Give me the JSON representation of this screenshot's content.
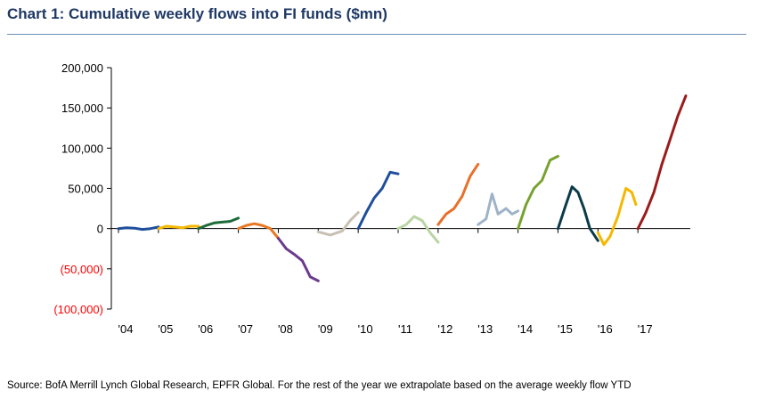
{
  "title": "Chart 1: Cumulative weekly flows into FI funds ($mn)",
  "source": "Source: BofA Merrill Lynch Global Research, EPFR Global. For the rest of the year we extrapolate based on the average weekly flow YTD",
  "chart_data": {
    "type": "line",
    "title": "Cumulative weekly flows into FI funds ($mn)",
    "xlabel": "",
    "ylabel": "",
    "ylim": [
      -100000,
      200000
    ],
    "xlim": [
      2004,
      2018.2
    ],
    "yticks": [
      {
        "value": 200000,
        "label": "200,000",
        "negative": false
      },
      {
        "value": 150000,
        "label": "150,000",
        "negative": false
      },
      {
        "value": 100000,
        "label": "100,000",
        "negative": false
      },
      {
        "value": 50000,
        "label": "50,000",
        "negative": false
      },
      {
        "value": 0,
        "label": "0",
        "negative": false
      },
      {
        "value": -50000,
        "label": "(50,000)",
        "negative": true
      },
      {
        "value": -100000,
        "label": "(100,000)",
        "negative": true
      }
    ],
    "xticks": [
      {
        "value": 2004,
        "label": "'04"
      },
      {
        "value": 2005,
        "label": "'05"
      },
      {
        "value": 2006,
        "label": "'06"
      },
      {
        "value": 2007,
        "label": "'07"
      },
      {
        "value": 2008,
        "label": "'08"
      },
      {
        "value": 2009,
        "label": "'09"
      },
      {
        "value": 2010,
        "label": "'10"
      },
      {
        "value": 2011,
        "label": "'11"
      },
      {
        "value": 2012,
        "label": "'12"
      },
      {
        "value": 2013,
        "label": "'13"
      },
      {
        "value": 2014,
        "label": "'14"
      },
      {
        "value": 2015,
        "label": "'15"
      },
      {
        "value": 2016,
        "label": "'16"
      },
      {
        "value": 2017,
        "label": "'17"
      }
    ],
    "series": [
      {
        "name": "2004",
        "color": "#1f4e9c",
        "points": [
          [
            2004.0,
            0
          ],
          [
            2004.2,
            1000
          ],
          [
            2004.4,
            500
          ],
          [
            2004.6,
            -1000
          ],
          [
            2004.8,
            0
          ],
          [
            2005.0,
            2000
          ]
        ]
      },
      {
        "name": "2005",
        "color": "#f5b700",
        "points": [
          [
            2005.0,
            0
          ],
          [
            2005.2,
            3000
          ],
          [
            2005.4,
            2000
          ],
          [
            2005.6,
            1000
          ],
          [
            2005.8,
            3000
          ],
          [
            2006.0,
            3000
          ]
        ]
      },
      {
        "name": "2006",
        "color": "#1e6b3a",
        "points": [
          [
            2006.0,
            0
          ],
          [
            2006.2,
            4000
          ],
          [
            2006.4,
            7000
          ],
          [
            2006.6,
            8000
          ],
          [
            2006.8,
            9000
          ],
          [
            2007.0,
            13000
          ]
        ]
      },
      {
        "name": "2007",
        "color": "#e87722",
        "points": [
          [
            2007.0,
            0
          ],
          [
            2007.2,
            4000
          ],
          [
            2007.4,
            6000
          ],
          [
            2007.6,
            4000
          ],
          [
            2007.8,
            0
          ],
          [
            2008.0,
            -12000
          ]
        ]
      },
      {
        "name": "2008",
        "color": "#6b3a8c",
        "points": [
          [
            2008.0,
            -12000
          ],
          [
            2008.2,
            -25000
          ],
          [
            2008.4,
            -32000
          ],
          [
            2008.6,
            -40000
          ],
          [
            2008.8,
            -60000
          ],
          [
            2009.0,
            -65000
          ]
        ]
      },
      {
        "name": "2009",
        "color": "#c9bfb3",
        "points": [
          [
            2009.0,
            -4000
          ],
          [
            2009.3,
            -8000
          ],
          [
            2009.6,
            -3000
          ],
          [
            2009.8,
            10000
          ],
          [
            2010.0,
            20000
          ]
        ]
      },
      {
        "name": "2010",
        "color": "#1f4e9c",
        "points": [
          [
            2010.0,
            0
          ],
          [
            2010.2,
            20000
          ],
          [
            2010.4,
            38000
          ],
          [
            2010.6,
            50000
          ],
          [
            2010.8,
            70000
          ],
          [
            2011.0,
            68000
          ]
        ]
      },
      {
        "name": "2011",
        "color": "#b9d5a4",
        "points": [
          [
            2011.0,
            0
          ],
          [
            2011.2,
            5000
          ],
          [
            2011.4,
            15000
          ],
          [
            2011.6,
            10000
          ],
          [
            2011.8,
            -5000
          ],
          [
            2012.0,
            -17000
          ]
        ]
      },
      {
        "name": "2012",
        "color": "#e8702a",
        "points": [
          [
            2012.0,
            5000
          ],
          [
            2012.2,
            18000
          ],
          [
            2012.4,
            25000
          ],
          [
            2012.6,
            40000
          ],
          [
            2012.8,
            65000
          ],
          [
            2013.0,
            80000
          ]
        ]
      },
      {
        "name": "2013",
        "color": "#9fb3c8",
        "points": [
          [
            2013.0,
            5000
          ],
          [
            2013.2,
            12000
          ],
          [
            2013.35,
            43000
          ],
          [
            2013.5,
            18000
          ],
          [
            2013.7,
            25000
          ],
          [
            2013.85,
            18000
          ],
          [
            2014.0,
            22000
          ]
        ]
      },
      {
        "name": "2014",
        "color": "#78a22f",
        "points": [
          [
            2014.0,
            0
          ],
          [
            2014.2,
            30000
          ],
          [
            2014.4,
            50000
          ],
          [
            2014.6,
            60000
          ],
          [
            2014.8,
            85000
          ],
          [
            2015.0,
            90000
          ]
        ]
      },
      {
        "name": "2015",
        "color": "#0b3b4a",
        "points": [
          [
            2015.0,
            0
          ],
          [
            2015.2,
            30000
          ],
          [
            2015.35,
            52000
          ],
          [
            2015.5,
            45000
          ],
          [
            2015.65,
            25000
          ],
          [
            2015.8,
            0
          ],
          [
            2016.0,
            -15000
          ]
        ]
      },
      {
        "name": "2016",
        "color": "#f5b700",
        "points": [
          [
            2016.0,
            -5000
          ],
          [
            2016.15,
            -20000
          ],
          [
            2016.3,
            -10000
          ],
          [
            2016.5,
            15000
          ],
          [
            2016.7,
            50000
          ],
          [
            2016.85,
            45000
          ],
          [
            2016.95,
            30000
          ]
        ]
      },
      {
        "name": "2017",
        "color": "#9c1b1b",
        "points": [
          [
            2017.0,
            0
          ],
          [
            2017.2,
            20000
          ],
          [
            2017.4,
            45000
          ],
          [
            2017.6,
            80000
          ],
          [
            2017.8,
            110000
          ],
          [
            2018.0,
            140000
          ],
          [
            2018.2,
            165000
          ]
        ]
      }
    ]
  }
}
